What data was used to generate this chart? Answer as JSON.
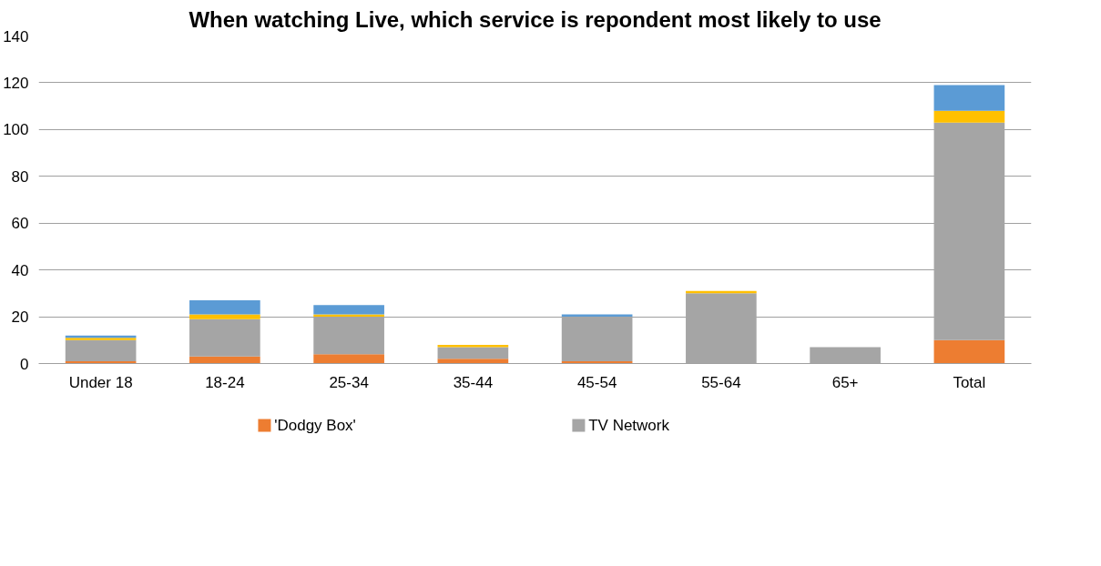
{
  "chart_data": {
    "type": "bar",
    "title": "When watching Live, which service is repondent most likely to use",
    "categories": [
      "Under 18",
      "18-24",
      "25-34",
      "35-44",
      "45-54",
      "55-64",
      "65+",
      "Total"
    ],
    "stacked": true,
    "series": [
      {
        "name": "'Dodgy Box'",
        "color": "#ed7d31",
        "values": [
          1,
          3,
          4,
          2,
          1,
          0,
          0,
          10
        ]
      },
      {
        "name": "TV Network",
        "color": "#a5a5a5",
        "values": [
          9,
          16,
          16,
          5,
          19,
          30,
          7,
          93
        ]
      },
      {
        "color": "#ffc000",
        "values": [
          1,
          2,
          1,
          1,
          0,
          1,
          0,
          5
        ]
      },
      {
        "color": "#5b9bd5",
        "values": [
          1,
          6,
          4,
          0,
          1,
          0,
          0,
          11
        ]
      }
    ],
    "ylim": [
      0,
      140
    ],
    "yticks": [
      0,
      20,
      40,
      60,
      80,
      100,
      120,
      140
    ],
    "grid": "y",
    "legend": "bottom"
  }
}
